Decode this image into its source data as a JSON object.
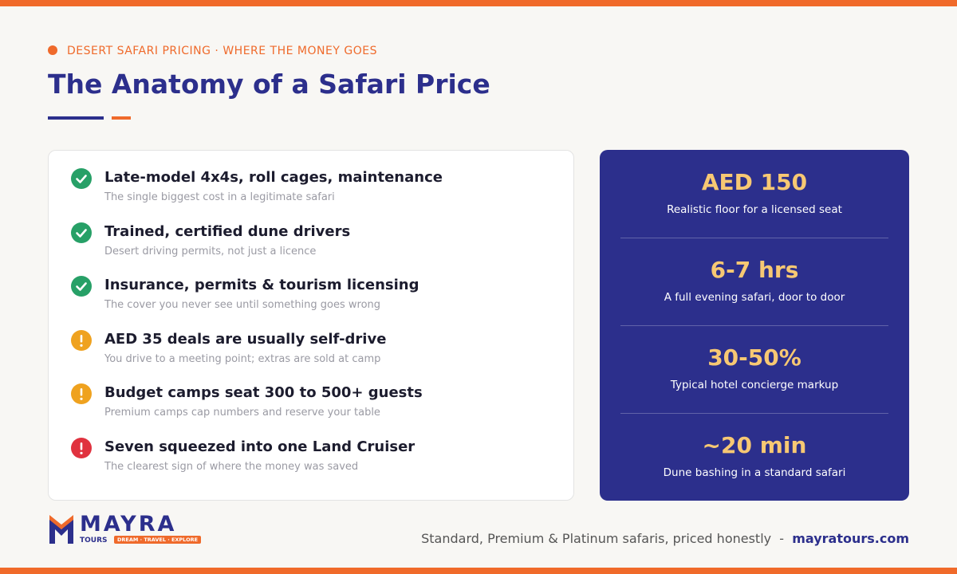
{
  "header": {
    "eyebrow": "DESERT SAFARI PRICING · WHERE THE MONEY GOES",
    "title": "The Anatomy of a Safari Price"
  },
  "checklist": [
    {
      "title": "Late-model 4x4s, roll cages, maintenance",
      "note": "The single biggest cost in a legitimate safari"
    },
    {
      "title": "Trained, certified dune drivers",
      "note": "Desert driving permits, not just a licence"
    },
    {
      "title": "Insurance, permits & tourism licensing",
      "note": "The cover you never see until something goes wrong"
    },
    {
      "title": "AED 35 deals are usually self-drive",
      "note": "You drive to a meeting point; extras are sold at camp"
    },
    {
      "title": "Budget camps seat 300 to 500+ guests",
      "note": "Premium camps cap numbers and reserve your table"
    },
    {
      "title": "Seven squeezed into one Land Cruiser",
      "note": "The clearest sign of where the money was saved"
    }
  ],
  "stats": [
    {
      "value": "AED 150",
      "label": "Realistic floor for a licensed seat"
    },
    {
      "value": "6-7 hrs",
      "label": "A full evening safari, door to door"
    },
    {
      "value": "30-50%",
      "label": "Typical hotel concierge markup"
    },
    {
      "value": "~20 min",
      "label": "Dune bashing in a standard safari"
    }
  ],
  "logo": {
    "name": "MAYRA",
    "sub": "TOURS",
    "tagline": "DREAM · TRAVEL · EXPLORE"
  },
  "footer": {
    "tagline": "Standard, Premium & Platinum safaris, priced honestly",
    "separator": "-",
    "url": "mayratours.com"
  }
}
